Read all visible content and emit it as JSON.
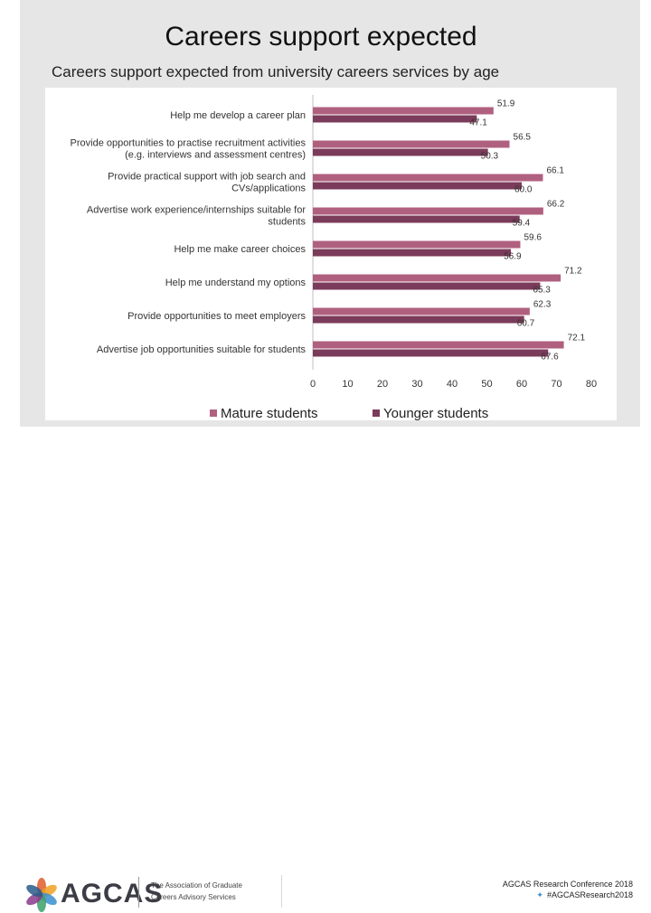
{
  "slide": {
    "title": "Careers support expected"
  },
  "chart_data": {
    "type": "bar",
    "orientation": "horizontal",
    "title": "Careers support expected from university careers services by age",
    "categories": [
      "Help me develop a career plan",
      "Provide opportunities to practise recruitment activities (e.g. interviews and assessment centres)",
      "Provide practical support with job search and CVs/applications",
      "Advertise work experience/internships suitable for students",
      "Help me make career choices",
      "Help me understand my options",
      "Provide opportunities to meet employers",
      "Advertise job opportunities suitable for students"
    ],
    "category_lines": [
      [
        "Help me develop a career plan"
      ],
      [
        "Provide opportunities to practise recruitment activities",
        "(e.g. interviews and assessment centres)"
      ],
      [
        "Provide practical support with job search and",
        "CVs/applications"
      ],
      [
        "Advertise work experience/internships suitable for",
        "students"
      ],
      [
        "Help me make career choices"
      ],
      [
        "Help me understand my options"
      ],
      [
        "Provide opportunities to meet employers"
      ],
      [
        "Advertise job opportunities suitable for students"
      ]
    ],
    "series": [
      {
        "name": "Mature students",
        "color": "#b0607f",
        "values": [
          51.9,
          56.5,
          66.1,
          66.2,
          59.6,
          71.2,
          62.3,
          72.1
        ],
        "labels": [
          "51.9",
          "56.5",
          "66.1",
          "66.2",
          "59.6",
          "71.2",
          "62.3",
          "72.1"
        ]
      },
      {
        "name": "Younger students",
        "color": "#7b3b5a",
        "values": [
          47.1,
          50.3,
          60.0,
          59.4,
          56.9,
          65.3,
          60.7,
          67.6
        ],
        "labels": [
          "47.1",
          "50.3",
          "60.0",
          "59.4",
          "56.9",
          "65.3",
          "60.7",
          "67.6"
        ]
      }
    ],
    "xlim": [
      0,
      80
    ],
    "xticks": [
      "0",
      "10",
      "20",
      "30",
      "40",
      "50",
      "60",
      "70",
      "80"
    ],
    "legend_position": "bottom",
    "grid": false
  },
  "footer": {
    "logo_name": "AGCAS",
    "logo_sub_1": "The Association of Graduate",
    "logo_sub_2": "Careers Advisory Services",
    "conference": "AGCAS Research Conference 2018",
    "hashtag": "#AGCASResearch2018",
    "colors": {
      "logo_petals": [
        "#e05a2b",
        "#f0a020",
        "#3a8fd0",
        "#3aa06a",
        "#8a3a8a",
        "#2a5a8a"
      ]
    }
  }
}
